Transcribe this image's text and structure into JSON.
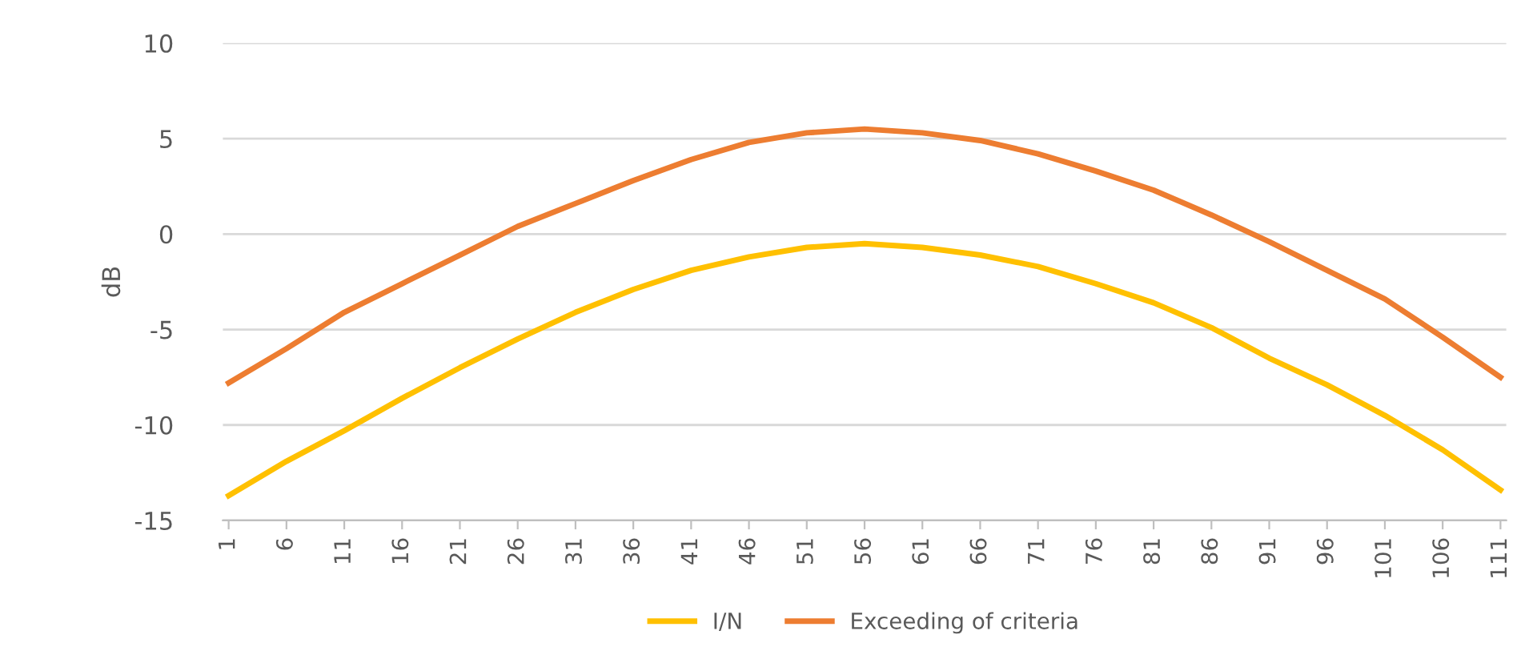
{
  "chart_data": {
    "type": "line",
    "ylabel": "dB",
    "x": [
      1,
      6,
      11,
      16,
      21,
      26,
      31,
      36,
      41,
      46,
      51,
      56,
      61,
      66,
      71,
      76,
      81,
      86,
      91,
      96,
      101,
      106,
      111
    ],
    "series": [
      {
        "name": "I/N",
        "color": "#ffc000",
        "values": [
          -13.7,
          -11.9,
          -10.3,
          -8.6,
          -7.0,
          -5.5,
          -4.1,
          -2.9,
          -1.9,
          -1.2,
          -0.7,
          -0.5,
          -0.7,
          -1.1,
          -1.7,
          -2.6,
          -3.6,
          -4.9,
          -6.5,
          -7.9,
          -9.5,
          -11.3,
          -13.4
        ]
      },
      {
        "name": "Exceeding of criteria",
        "color": "#ed7d31",
        "values": [
          -7.8,
          -6.0,
          -4.1,
          -2.6,
          -1.1,
          0.4,
          1.6,
          2.8,
          3.9,
          4.8,
          5.3,
          5.5,
          5.3,
          4.9,
          4.2,
          3.3,
          2.3,
          1.0,
          -0.4,
          -1.9,
          -3.4,
          -5.4,
          -7.5
        ]
      }
    ],
    "xlim": [
      0.5,
      111.5
    ],
    "xticks": [
      1,
      6,
      11,
      16,
      21,
      26,
      31,
      36,
      41,
      46,
      51,
      56,
      61,
      66,
      71,
      76,
      81,
      86,
      91,
      96,
      101,
      106,
      111
    ],
    "ylim": [
      -15,
      10
    ],
    "yticks": [
      -15,
      -10,
      -5,
      0,
      5,
      10
    ],
    "grid": "y",
    "legend": "bottom",
    "marker": "none",
    "line_style": "solid"
  }
}
